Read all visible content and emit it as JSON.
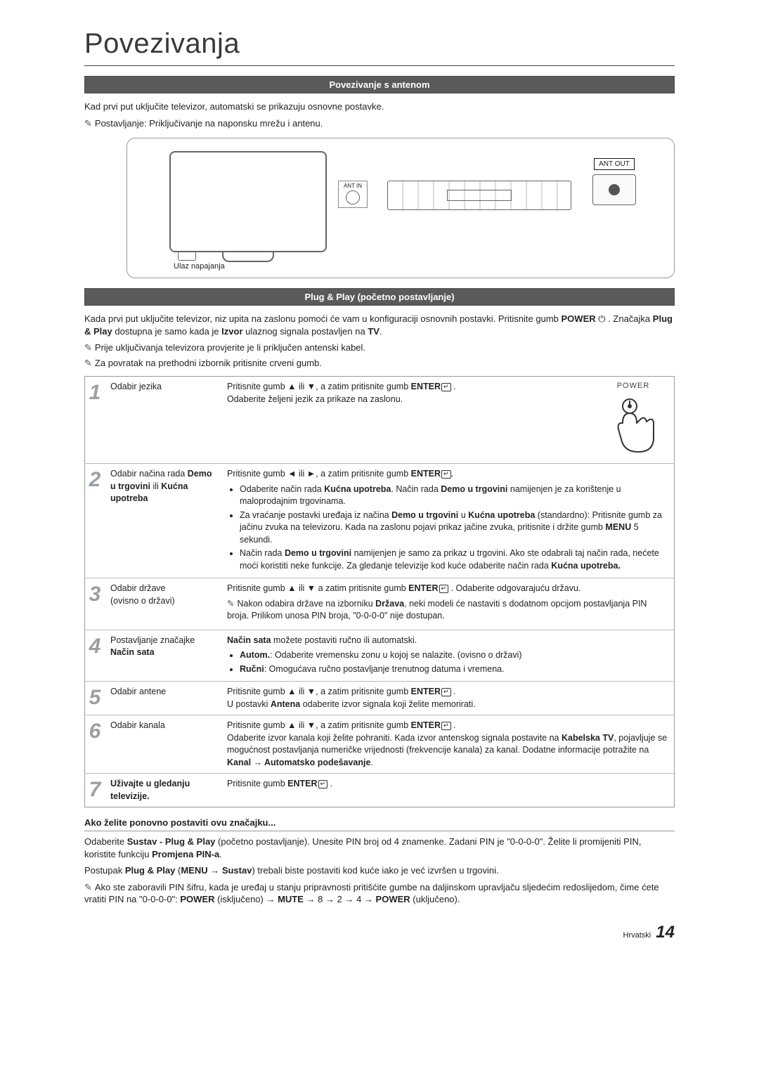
{
  "page": {
    "title": "Povezivanja",
    "language_label": "Hrvatski",
    "page_number": "14"
  },
  "section1": {
    "bar": "Povezivanje s antenom",
    "intro": "Kad prvi put uključite televizor, automatski se prikazuju osnovne postavke.",
    "note": "Postavljanje: Priključivanje na naponsku mrežu i antenu.",
    "ant_in": "ANT IN",
    "ant_out": "ANT OUT",
    "power_in": "Ulaz napajanja"
  },
  "section2": {
    "bar": "Plug & Play (početno postavljanje)",
    "intro_a": "Kada prvi put uključite televizor, niz upita na zaslonu pomoći će vam u konfiguraciji osnovnih postavki. Pritisnite gumb ",
    "intro_b": ". Značajka ",
    "intro_c": " dostupna je samo kada je ",
    "intro_d": " ulaznog signala postavljen na ",
    "power_word": "POWER",
    "plug_play": "Plug & Play",
    "izvor": "Izvor",
    "tv": "TV",
    "note1": "Prije uključivanja televizora provjerite je li priključen antenski kabel.",
    "note2": "Za povratak na prethodni izbornik pritisnite crveni gumb.",
    "power_label": "POWER"
  },
  "steps": [
    {
      "n": "1",
      "label": "Odabir jezika",
      "body_a": "Pritisnite gumb ▲ ili ▼, a zatim pritisnite gumb ",
      "enter": "ENTER",
      "body_b": ".\nOdaberite željeni jezik za prikaze na zaslonu."
    },
    {
      "n": "2",
      "label_a": "Odabir načina rada ",
      "label_b": "Demo u trgovini",
      "label_c": " ili ",
      "label_d": "Kućna upotreba",
      "body_a": "Pritisnite gumb ◄ ili ►, a zatim pritisnite gumb ",
      "enter": "ENTER",
      "bullets": [
        "Odaberite način rada <b>Kućna upotreba</b>. Način rada <b>Demo u trgovini</b> namijenjen je za korištenje u maloprodajnim trgovinama.",
        "Za vraćanje postavki uređaja iz načina <b>Demo u trgovini</b> u <b>Kućna upotreba</b> (standardno): Pritisnite gumb za jačinu zvuka na televizoru. Kada na zaslonu pojavi prikaz jačine zvuka, pritisnite i držite gumb <b>MENU</b> 5 sekundi.",
        "Način rada <b>Demo u trgovini</b> namijenjen je samo za prikaz u trgovini. Ako ste odabrali taj način rada, nećete moći koristiti neke funkcije. Za gledanje televizije kod kuće odaberite način rada <b>Kućna upotreba.</b>"
      ]
    },
    {
      "n": "3",
      "label": "Odabir države\n(ovisno o državi)",
      "body_a": "Pritisnite gumb ▲ ili ▼ a zatim pritisnite gumb ",
      "enter": "ENTER",
      "body_b": ". Odaberite odgovarajuću državu.",
      "subnote": "Nakon odabira države na izborniku <b>Država</b>, neki modeli će nastaviti s dodatnom opcijom postavljanja PIN broja. Prilikom unosa PIN broja, \"0-0-0-0\" nije dostupan."
    },
    {
      "n": "4",
      "label_a": "Postavljanje značajke ",
      "label_b": "Način sata",
      "body_a": "Način sata",
      "body_b": " možete postaviti ručno ili automatski.",
      "bullets": [
        "<b>Autom.</b>: Odaberite vremensku zonu u kojoj se nalazite. (ovisno o državi)",
        "<b>Ručni</b>: Omogućava ručno postavljanje trenutnog datuma i vremena."
      ]
    },
    {
      "n": "5",
      "label": "Odabir antene",
      "body_a": "Pritisnite gumb ▲ ili ▼, a zatim pritisnite gumb ",
      "enter": "ENTER",
      "body_b": ".\nU postavki <b>Antena</b> odaberite izvor signala koji želite memorirati."
    },
    {
      "n": "6",
      "label": "Odabir kanala",
      "body_a": "Pritisnite gumb ▲ ili ▼, a zatim pritisnite gumb ",
      "enter": "ENTER",
      "body_b": ".\nOdaberite izvor kanala koji želite pohraniti. Kada izvor antenskog signala postavite na <b>Kabelska TV</b>, pojavljuje se mogućnost postavljanja numeričke vrijednosti (frekvencije kanala) za kanal. Dodatne informacije potražite na <b>Kanal → Automatsko podešavanje</b>."
    },
    {
      "n": "7",
      "label": "Uživajte u gledanju televizije.",
      "body_a": "Pritisnite gumb ",
      "enter": "ENTER",
      "body_b": "."
    }
  ],
  "reset": {
    "heading": "Ako želite ponovno postaviti ovu značajku...",
    "p1": "Odaberite <b>Sustav - Plug & Play</b> (početno postavljanje). Unesite PIN broj od 4 znamenke. Zadani PIN je \"0-0-0-0\". Želite li promijeniti PIN, koristite funkciju <b>Promjena PIN-a</b>.",
    "p2": "Postupak <b>Plug & Play</b> (<b>MENU → Sustav</b>) trebali biste postaviti kod kuće iako je već izvršen u trgovini.",
    "note": "Ako ste zaboravili PIN šifru, kada je uređaj u stanju pripravnosti pritišćite gumbe na daljinskom upravljaču sljedećim redoslijedom, čime ćete vratiti PIN na \"0-0-0-0\": <b>POWER</b> (isključeno) → <b>MUTE</b> → 8 → 2 → 4 → <b>POWER</b> (uključeno)."
  }
}
